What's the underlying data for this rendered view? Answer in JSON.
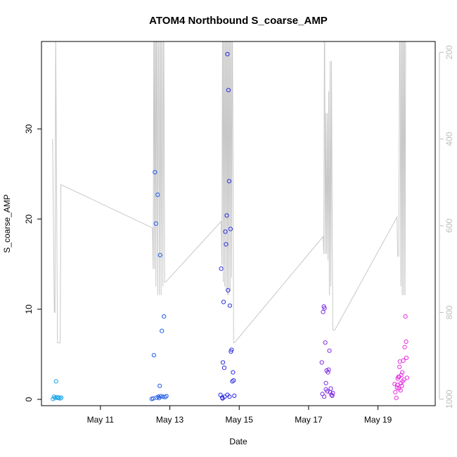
{
  "chart_data": {
    "type": "scatter",
    "title": "ATOM4 Northbound S_coarse_AMP",
    "xlabel": "Date",
    "ylabel": "S_coarse_AMP",
    "xlim": [
      9.3,
      20.65
    ],
    "ylim": [
      -0.7,
      39.7
    ],
    "x_ticks": [
      {
        "value": 11,
        "label": "May 11"
      },
      {
        "value": 13,
        "label": "May 13"
      },
      {
        "value": 15,
        "label": "May 15"
      },
      {
        "value": 17,
        "label": "May 17"
      },
      {
        "value": 19,
        "label": "May 19"
      }
    ],
    "y_ticks": [
      0,
      10,
      20,
      30
    ],
    "right_axis": {
      "ticks": [
        200,
        400,
        600,
        800,
        1000
      ],
      "range_top": 175,
      "range_bottom": 1015,
      "inverted": true,
      "color": "#bdbdbd"
    },
    "series": [
      {
        "color": "#1aa7e8",
        "points": [
          [
            9.63,
            0.05
          ],
          [
            9.66,
            0.3
          ],
          [
            9.69,
            0.15
          ],
          [
            9.72,
            2.0
          ],
          [
            9.74,
            0.25
          ],
          [
            9.77,
            0.15
          ],
          [
            9.8,
            0.2
          ],
          [
            9.84,
            0.1
          ],
          [
            9.87,
            0.2
          ]
        ]
      },
      {
        "color": "#1f5ae8",
        "points": [
          [
            12.48,
            0.05
          ],
          [
            12.52,
            0.1
          ],
          [
            12.54,
            4.9
          ],
          [
            12.57,
            25.2
          ],
          [
            12.6,
            19.5
          ],
          [
            12.62,
            0.2
          ],
          [
            12.65,
            22.7
          ],
          [
            12.67,
            0.3
          ],
          [
            12.69,
            0.15
          ],
          [
            12.71,
            1.5
          ],
          [
            12.72,
            16.0
          ],
          [
            12.74,
            0.35
          ],
          [
            12.77,
            7.6
          ],
          [
            12.8,
            0.3
          ],
          [
            12.83,
            9.2
          ],
          [
            12.86,
            0.25
          ],
          [
            12.9,
            0.35
          ]
        ]
      },
      {
        "color": "#2d2ee0",
        "points": [
          [
            14.46,
            0.5
          ],
          [
            14.48,
            14.5
          ],
          [
            14.51,
            0.2
          ],
          [
            14.53,
            4.1
          ],
          [
            14.55,
            10.8
          ],
          [
            14.57,
            3.5
          ],
          [
            14.58,
            0.3
          ],
          [
            14.6,
            18.6
          ],
          [
            14.62,
            17.2
          ],
          [
            14.64,
            20.4
          ],
          [
            14.66,
            38.3
          ],
          [
            14.68,
            12.1
          ],
          [
            14.69,
            34.3
          ],
          [
            14.71,
            24.2
          ],
          [
            14.73,
            10.4
          ],
          [
            14.75,
            18.9
          ],
          [
            14.76,
            5.3
          ],
          [
            14.78,
            5.5
          ],
          [
            14.8,
            2.0
          ],
          [
            14.82,
            3.0
          ],
          [
            14.84,
            2.1
          ],
          [
            14.86,
            0.4
          ],
          [
            14.66,
            0.5
          ],
          [
            14.72,
            0.3
          ],
          [
            14.52,
            0.1
          ]
        ]
      },
      {
        "color": "#7f2ee0",
        "points": [
          [
            17.38,
            4.1
          ],
          [
            17.42,
            9.7
          ],
          [
            17.44,
            10.3
          ],
          [
            17.46,
            10.1
          ],
          [
            17.48,
            6.3
          ],
          [
            17.5,
            1.8
          ],
          [
            17.52,
            3.2
          ],
          [
            17.54,
            0.9
          ],
          [
            17.56,
            3.0
          ],
          [
            17.58,
            3.3
          ],
          [
            17.6,
            5.4
          ],
          [
            17.62,
            0.8
          ],
          [
            17.64,
            1.2
          ],
          [
            17.66,
            0.5
          ],
          [
            17.68,
            0.4
          ],
          [
            17.7,
            0.7
          ],
          [
            17.4,
            0.6
          ],
          [
            17.45,
            0.3
          ],
          [
            17.5,
            1.1
          ]
        ]
      },
      {
        "color": "#e62fe0",
        "points": [
          [
            19.48,
            1.7
          ],
          [
            19.5,
            0.8
          ],
          [
            19.53,
            0.15
          ],
          [
            19.55,
            1.3
          ],
          [
            19.57,
            2.3
          ],
          [
            19.59,
            2.5
          ],
          [
            19.61,
            2.5
          ],
          [
            19.63,
            4.2
          ],
          [
            19.65,
            1.0
          ],
          [
            19.67,
            2.7
          ],
          [
            19.69,
            1.5
          ],
          [
            19.71,
            2.0
          ],
          [
            19.73,
            4.3
          ],
          [
            19.75,
            2.2
          ],
          [
            19.77,
            5.8
          ],
          [
            19.79,
            9.2
          ],
          [
            19.81,
            6.4
          ],
          [
            19.82,
            4.6
          ],
          [
            19.84,
            2.4
          ],
          [
            19.56,
            1.6
          ],
          [
            19.6,
            1.2
          ],
          [
            19.66,
            1.8
          ],
          [
            19.7,
            3.0
          ],
          [
            19.62,
            3.6
          ]
        ]
      }
    ],
    "gray_line": {
      "color": "#c8c8c8",
      "y_unit": "right_axis",
      "points": [
        [
          9.62,
          400
        ],
        [
          9.67,
          800
        ],
        [
          9.69,
          800
        ],
        [
          9.71,
          150
        ],
        [
          9.76,
          870
        ],
        [
          9.84,
          870
        ],
        [
          9.86,
          505
        ],
        [
          12.5,
          605
        ],
        [
          12.52,
          700
        ],
        [
          12.54,
          30
        ],
        [
          12.56,
          700
        ],
        [
          12.58,
          30
        ],
        [
          12.6,
          740
        ],
        [
          12.62,
          30
        ],
        [
          12.65,
          760
        ],
        [
          12.67,
          30
        ],
        [
          12.7,
          760
        ],
        [
          12.72,
          30
        ],
        [
          12.75,
          760
        ],
        [
          12.77,
          30
        ],
        [
          12.8,
          740
        ],
        [
          12.82,
          30
        ],
        [
          12.85,
          730
        ],
        [
          12.88,
          730
        ],
        [
          14.48,
          590
        ],
        [
          14.5,
          690
        ],
        [
          14.52,
          30
        ],
        [
          14.54,
          730
        ],
        [
          14.56,
          30
        ],
        [
          14.58,
          740
        ],
        [
          14.6,
          30
        ],
        [
          14.62,
          750
        ],
        [
          14.64,
          30
        ],
        [
          14.66,
          760
        ],
        [
          14.68,
          30
        ],
        [
          14.7,
          760
        ],
        [
          14.72,
          30
        ],
        [
          14.74,
          750
        ],
        [
          14.76,
          30
        ],
        [
          14.78,
          720
        ],
        [
          14.8,
          80
        ],
        [
          14.82,
          430
        ],
        [
          14.84,
          870
        ],
        [
          14.86,
          870
        ],
        [
          17.42,
          625
        ],
        [
          17.44,
          665
        ],
        [
          17.46,
          30
        ],
        [
          17.48,
          665
        ],
        [
          17.5,
          340
        ],
        [
          17.52,
          665
        ],
        [
          17.54,
          340
        ],
        [
          17.56,
          680
        ],
        [
          17.58,
          290
        ],
        [
          17.6,
          760
        ],
        [
          17.62,
          220
        ],
        [
          17.64,
          740
        ],
        [
          17.66,
          220
        ],
        [
          17.68,
          600
        ],
        [
          17.7,
          840
        ],
        [
          17.76,
          840
        ],
        [
          19.55,
          580
        ],
        [
          19.57,
          670
        ],
        [
          19.6,
          670
        ],
        [
          19.63,
          30
        ],
        [
          19.66,
          740
        ],
        [
          19.68,
          30
        ],
        [
          19.7,
          760
        ],
        [
          19.72,
          30
        ],
        [
          19.74,
          760
        ],
        [
          19.76,
          30
        ],
        [
          19.78,
          760
        ],
        [
          19.8,
          30
        ]
      ]
    }
  }
}
